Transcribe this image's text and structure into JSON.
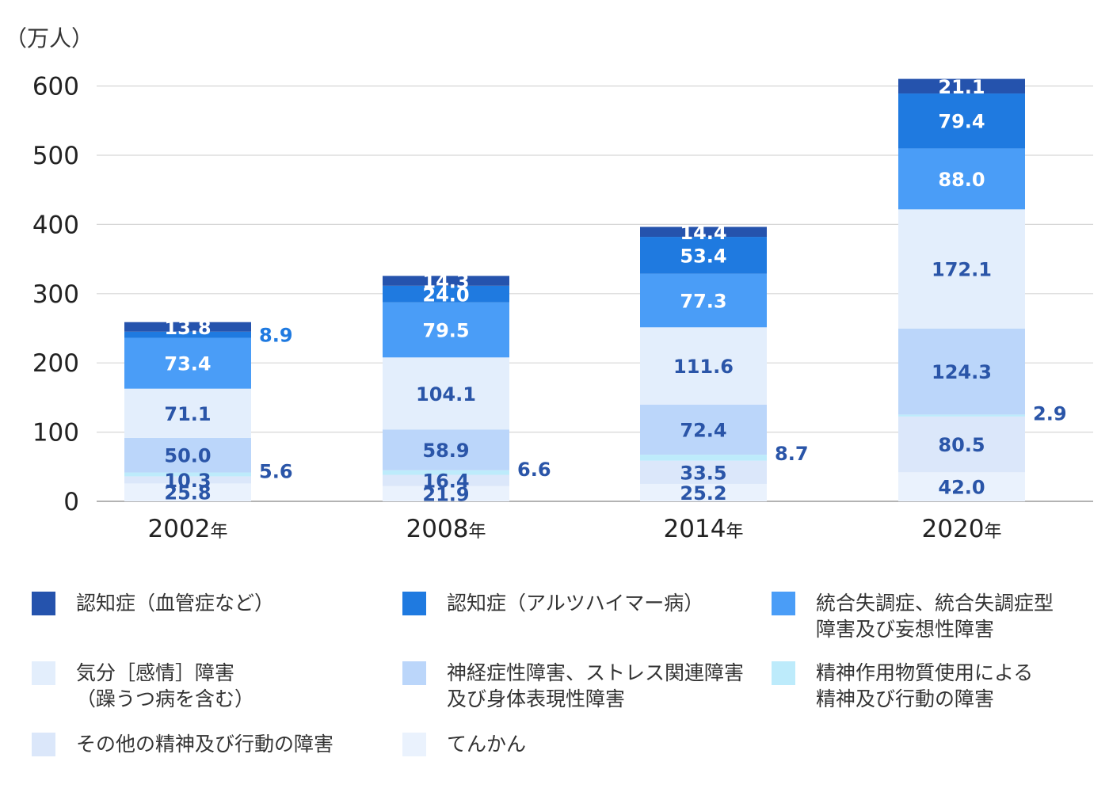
{
  "chart_data": {
    "type": "bar",
    "stacked": true,
    "unit_label": "（万人）",
    "categories": [
      "2002年",
      "2008年",
      "2014年",
      "2020年"
    ],
    "ylim": [
      0,
      670
    ],
    "yticks": [
      0,
      100,
      200,
      300,
      400,
      500,
      600
    ],
    "grid": true,
    "legend_position": "bottom",
    "series": [
      {
        "name": "てんかん",
        "color": "#EAF2FD",
        "values": [
          25.8,
          21.9,
          25.2,
          42.0
        ]
      },
      {
        "name": "その他の精神及び行動の障害",
        "color": "#DBE7FA",
        "values": [
          10.3,
          16.4,
          33.5,
          80.5
        ]
      },
      {
        "name": "精神作用物質使用による\n精神及び行動の障害",
        "color": "#BDEBFB",
        "values": [
          5.6,
          6.6,
          8.7,
          2.9
        ]
      },
      {
        "name": "神経症性障害、ストレス関連障害\n及び身体表現性障害",
        "color": "#BBD6FA",
        "values": [
          50.0,
          58.9,
          72.4,
          124.3
        ]
      },
      {
        "name": "気分［感情］障害\n（躁うつ病を含む）",
        "color": "#E3EEFC",
        "values": [
          71.1,
          104.1,
          111.6,
          172.1
        ]
      },
      {
        "name": "統合失調症、統合失調症型\n障害及び妄想性障害",
        "color": "#4A9DF7",
        "values": [
          73.4,
          79.5,
          77.3,
          88.0
        ]
      },
      {
        "name": "認知症（アルツハイマー病）",
        "color": "#1F7AE0",
        "values": [
          8.9,
          24.0,
          53.4,
          79.4
        ]
      },
      {
        "name": "認知症（血管症など）",
        "color": "#2553AD",
        "values": [
          13.8,
          14.3,
          14.4,
          21.1
        ]
      }
    ],
    "outside_labels": [
      {
        "series": 2,
        "category": 0,
        "text": "5.6"
      },
      {
        "series": 2,
        "category": 1,
        "text": "6.6"
      },
      {
        "series": 2,
        "category": 2,
        "text": "8.7"
      },
      {
        "series": 2,
        "category": 3,
        "text": "2.9"
      },
      {
        "series": 6,
        "category": 0,
        "text": "8.9"
      }
    ],
    "colors": {
      "inside_label": "#2A55A8",
      "inside_label_on_dark": "#FFFFFF",
      "outside_label_dark": "#2A55A8",
      "outside_label_blue": "#1F7AE0"
    }
  },
  "legend": {
    "order": [
      7,
      6,
      5,
      4,
      3,
      2,
      1,
      0
    ]
  }
}
